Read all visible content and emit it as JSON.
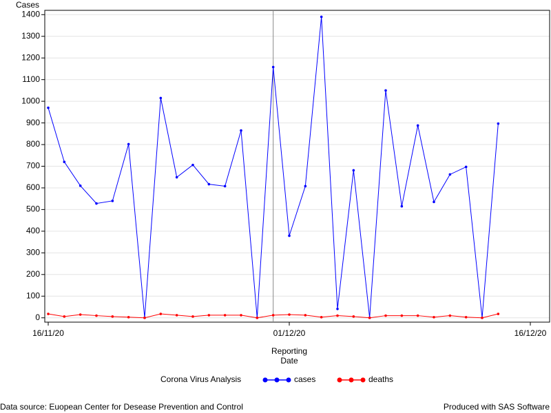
{
  "chart_data": {
    "type": "line",
    "y_label": "Cases",
    "x_label": "Reporting Date",
    "legend_title": "Corona Virus Analysis",
    "footnote_left": "Data source: Euopean Center for Desease Prevention and Control",
    "footnote_right": "Produced with SAS Software",
    "x": [
      "16/11/20",
      "17/11/20",
      "18/11/20",
      "19/11/20",
      "20/11/20",
      "21/11/20",
      "22/11/20",
      "23/11/20",
      "24/11/20",
      "25/11/20",
      "26/11/20",
      "27/11/20",
      "28/11/20",
      "29/11/20",
      "30/11/20",
      "01/12/20",
      "02/12/20",
      "03/12/20",
      "04/12/20",
      "05/12/20",
      "06/12/20",
      "07/12/20",
      "08/12/20",
      "09/12/20",
      "10/12/20",
      "11/12/20",
      "12/12/20",
      "13/12/20",
      "14/12/20"
    ],
    "series": [
      {
        "name": "cases",
        "color": "#0000ff",
        "values": [
          970,
          720,
          610,
          528,
          540,
          802,
          0,
          1015,
          649,
          706,
          617,
          608,
          865,
          0,
          1158,
          379,
          608,
          1390,
          41,
          681,
          0,
          1050,
          515,
          888,
          535,
          662,
          697,
          0,
          897
        ]
      },
      {
        "name": "deaths",
        "color": "#ff0000",
        "values": [
          18,
          6,
          15,
          10,
          6,
          3,
          0,
          18,
          12,
          6,
          12,
          12,
          12,
          0,
          12,
          15,
          12,
          3,
          10,
          6,
          0,
          10,
          10,
          10,
          3,
          10,
          3,
          0,
          18
        ]
      }
    ],
    "xlim": [
      "16/11/20",
      "16/12/20"
    ],
    "xticks": [
      "16/11/20",
      "01/12/20",
      "16/12/20"
    ],
    "ylim": [
      -20,
      1420
    ],
    "yticks": [
      0,
      100,
      200,
      300,
      400,
      500,
      600,
      700,
      800,
      900,
      1000,
      1100,
      1200,
      1300,
      1400
    ],
    "reference_line_x": "30/11/20",
    "grid": true
  }
}
